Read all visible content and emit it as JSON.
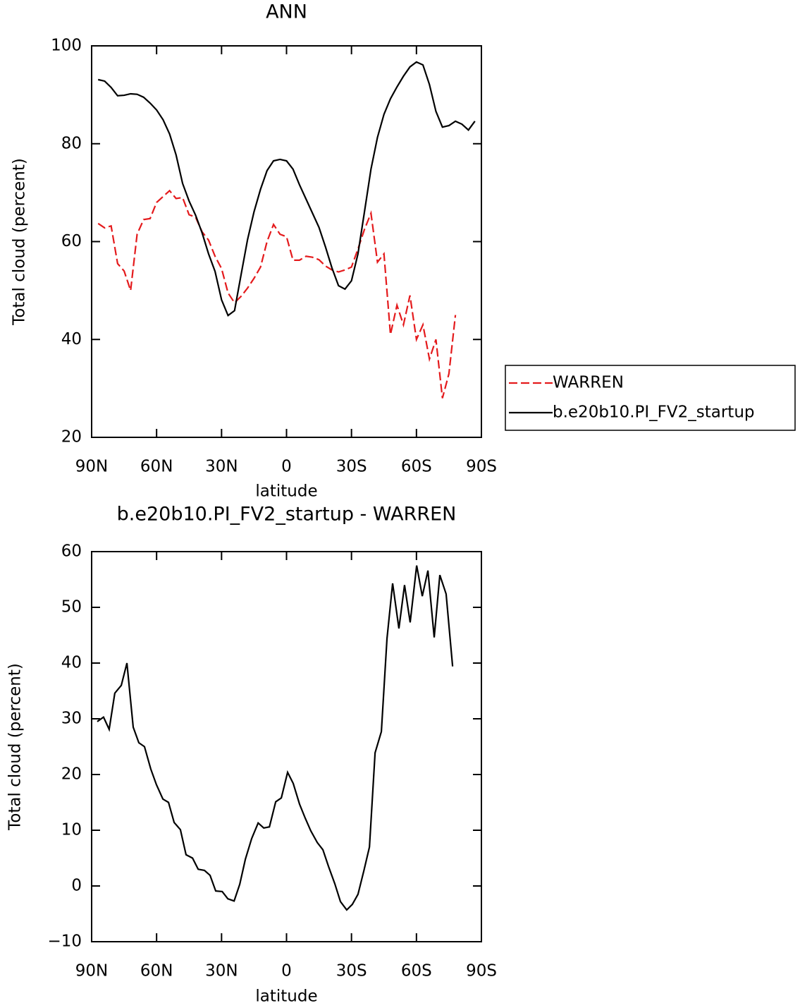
{
  "chart_data": [
    {
      "type": "line",
      "title": "ANN",
      "xlabel": "latitude",
      "ylabel": "Total cloud (percent)",
      "x": [
        87,
        84,
        81,
        78,
        75,
        72,
        69,
        66,
        63,
        60,
        57,
        54,
        51,
        48,
        45,
        42,
        39,
        36,
        33,
        30,
        27,
        24,
        21,
        18,
        15,
        12,
        9,
        6,
        3,
        0,
        -3,
        -6,
        -9,
        -12,
        -15,
        -18,
        -21,
        -24,
        -27,
        -30,
        -33,
        -36,
        -39,
        -42,
        -45,
        -48,
        -51,
        -54,
        -57,
        -60,
        -63,
        -66,
        -69,
        -72,
        -75,
        -78,
        -81,
        -84,
        -87
      ],
      "series": [
        {
          "name": "WARREN",
          "color": "#e41a1c",
          "style": "dashed",
          "values": [
            63.7,
            62.8,
            63.2,
            55.5,
            54,
            50,
            61.5,
            64.5,
            64.7,
            68,
            69.2,
            70.4,
            68.8,
            69,
            65.5,
            65,
            62,
            60.3,
            57,
            54.5,
            49.5,
            47.5,
            48.8,
            50.5,
            52.5,
            54.8,
            60,
            63.5,
            61.5,
            61,
            56.2,
            56.2,
            57,
            56.8,
            56.3,
            55,
            54.2,
            53.8,
            54.2,
            54.8,
            58.5,
            62.5,
            65.8,
            55.8,
            57.5,
            41,
            47,
            43,
            49,
            40,
            43,
            36,
            40,
            28,
            33,
            45,
            null,
            null,
            null
          ]
        },
        {
          "name": "b.e20b10.PI_FV2_startup",
          "color": "#000000",
          "style": "solid",
          "values": [
            93.1,
            92.8,
            91.5,
            89.8,
            89.9,
            90.2,
            90.1,
            89.5,
            88.3,
            86.9,
            84.9,
            82,
            77.7,
            71.9,
            68.3,
            65.4,
            61.8,
            57.5,
            53.9,
            48.1,
            44.9,
            45.9,
            53.2,
            60.4,
            66.1,
            70.7,
            74.5,
            76.5,
            76.8,
            76.5,
            74.8,
            71.6,
            68.7,
            65.8,
            62.9,
            58.9,
            54.6,
            51,
            50.3,
            52,
            57.5,
            66.1,
            74.8,
            81.3,
            86,
            89.2,
            91.6,
            93.8,
            95.7,
            96.7,
            96.1,
            92.1,
            86.6,
            83.4,
            83.7,
            84.6,
            84,
            82.8,
            84.6
          ]
        }
      ],
      "xlim": [
        90,
        -90
      ],
      "xticks": [
        {
          "value": 90,
          "label": "90N"
        },
        {
          "value": 60,
          "label": "60N"
        },
        {
          "value": 30,
          "label": "30N"
        },
        0,
        {
          "value": -30,
          "label": "30S"
        },
        {
          "value": -60,
          "label": "60S"
        },
        {
          "value": -90,
          "label": "90S"
        }
      ],
      "ylim": [
        20,
        100
      ],
      "yticks": [
        20,
        40,
        60,
        80,
        100
      ],
      "legend": "right"
    },
    {
      "type": "line",
      "title": "b.e20b10.PI_FV2_startup - WARREN",
      "xlabel": "latitude",
      "ylabel": "Total cloud (percent)",
      "x": [
        87.4,
        84.5,
        81.9,
        79.3,
        76.3,
        73.7,
        70.8,
        68.2,
        65.6,
        62.7,
        60.1,
        57.1,
        54.5,
        51.9,
        49.0,
        46.4,
        43.4,
        40.8,
        37.9,
        35.3,
        32.7,
        29.7,
        27.1,
        24.2,
        21.6,
        19.0,
        16.1,
        13.1,
        10.5,
        7.9,
        5.0,
        2.4,
        -0.5,
        -3.1,
        -6.0,
        -8.6,
        -11.2,
        -14.2,
        -16.8,
        -19.4,
        -22.3,
        -24.9,
        -27.8,
        -30.4,
        -33.0,
        -35.7,
        -38.3,
        -40.9,
        -43.8,
        -46.4,
        -49.0,
        -51.9,
        -54.5,
        -57.1,
        -60.1,
        -62.7,
        -65.3,
        -68.2,
        -70.8,
        -73.7,
        -76.7
      ],
      "series": [
        {
          "color": "#000000",
          "style": "solid",
          "values": [
            29.5,
            30.3,
            28.1,
            34.6,
            36,
            40,
            28.5,
            25.7,
            25,
            21,
            18.2,
            15.6,
            15,
            11.4,
            10.1,
            5.6,
            5,
            3,
            2.8,
            1.9,
            -0.9,
            -1,
            -2.3,
            -2.7,
            0.3,
            4.8,
            8.5,
            11.3,
            10.4,
            10.6,
            15.1,
            15.8,
            20.4,
            18.4,
            14.7,
            12.2,
            9.9,
            7.8,
            6.5,
            3.5,
            0.4,
            -2.8,
            -4.3,
            -3.3,
            -1.5,
            2.7,
            7,
            23.9,
            27.7,
            44.4,
            54.3,
            46.2,
            54,
            47.3,
            57.5,
            52,
            56.6,
            44.6,
            55.8,
            52.4,
            39.4
          ]
        }
      ],
      "xlim": [
        90,
        -90
      ],
      "xticks": [
        {
          "value": 90,
          "label": "90N"
        },
        {
          "value": 60,
          "label": "60N"
        },
        {
          "value": 30,
          "label": "30N"
        },
        0,
        {
          "value": -30,
          "label": "30S"
        },
        {
          "value": -60,
          "label": "60S"
        },
        {
          "value": -90,
          "label": "90S"
        }
      ],
      "ylim": [
        -10,
        60
      ],
      "yticks": [
        {
          "value": -10,
          "label": "−10"
        },
        0,
        10,
        20,
        30,
        40,
        50,
        60
      ]
    }
  ]
}
